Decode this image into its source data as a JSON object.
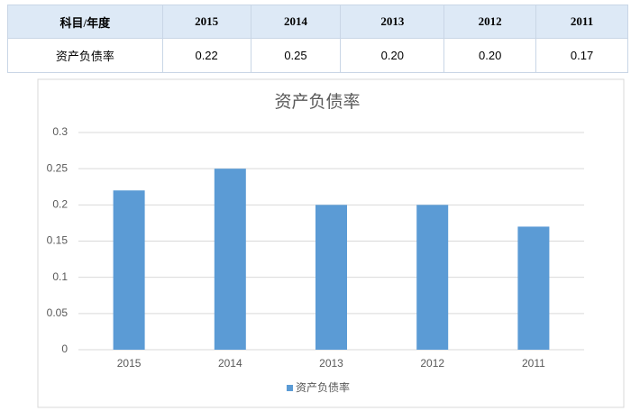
{
  "table": {
    "header": [
      "科目/年度",
      "2015",
      "2014",
      "2013",
      "2012",
      "2011"
    ],
    "rows": [
      [
        "资产负债率",
        "0.22",
        "0.25",
        "0.20",
        "0.20",
        "0.17"
      ]
    ]
  },
  "chart_data": {
    "type": "bar",
    "title": "资产负债率",
    "categories": [
      "2015",
      "2014",
      "2013",
      "2012",
      "2011"
    ],
    "series": [
      {
        "name": "资产负债率",
        "color": "#5b9bd5",
        "values": [
          0.22,
          0.25,
          0.2,
          0.2,
          0.17
        ]
      }
    ],
    "ylim": [
      0,
      0.3
    ],
    "yticks": [
      0,
      0.05,
      0.1,
      0.15,
      0.2,
      0.25,
      0.3
    ],
    "grid": true,
    "legend": "bottom"
  }
}
